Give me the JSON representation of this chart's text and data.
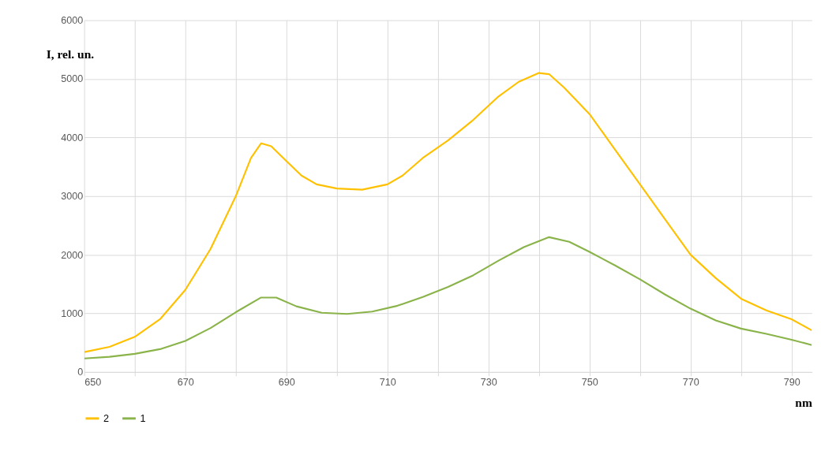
{
  "chart_data": {
    "type": "line",
    "xlabel": "nm",
    "ylabel": "I, rel. un.",
    "xlim": [
      650,
      794
    ],
    "ylim": [
      0,
      6000
    ],
    "xticks": [
      650,
      {
        "value": 660,
        "label": null
      },
      670,
      {
        "value": 680,
        "label": null
      },
      690,
      {
        "value": 700,
        "label": null
      },
      710,
      {
        "value": 720,
        "label": null
      },
      730,
      {
        "value": 740,
        "label": null
      },
      750,
      {
        "value": 760,
        "label": null
      },
      770,
      {
        "value": 780,
        "label": null
      },
      790
    ],
    "yticks": [
      0,
      1000,
      2000,
      3000,
      4000,
      5000,
      6000
    ],
    "grid": true,
    "legend": "bottom",
    "marker": "none",
    "line_style": "solid",
    "series": [
      {
        "name": "2",
        "color": "#ffc000",
        "x": [
          650,
          655,
          660,
          665,
          670,
          675,
          680,
          683,
          685,
          687,
          690,
          693,
          696,
          700,
          705,
          710,
          713,
          717,
          722,
          727,
          732,
          736,
          740,
          742,
          745,
          750,
          755,
          760,
          765,
          770,
          775,
          780,
          785,
          790,
          794
        ],
        "values": [
          340,
          430,
          600,
          900,
          1400,
          2100,
          3000,
          3650,
          3900,
          3850,
          3600,
          3350,
          3200,
          3130,
          3110,
          3200,
          3350,
          3650,
          3950,
          4300,
          4700,
          4950,
          5100,
          5080,
          4850,
          4400,
          3800,
          3200,
          2600,
          2000,
          1600,
          1250,
          1050,
          900,
          710
        ]
      },
      {
        "name": "1",
        "color": "#8ab34a",
        "x": [
          650,
          655,
          660,
          665,
          670,
          675,
          680,
          685,
          688,
          692,
          697,
          702,
          707,
          712,
          717,
          722,
          727,
          732,
          737,
          742,
          746,
          750,
          755,
          760,
          765,
          770,
          775,
          780,
          785,
          790,
          794
        ],
        "values": [
          230,
          260,
          310,
          390,
          530,
          750,
          1020,
          1270,
          1270,
          1120,
          1010,
          990,
          1030,
          1130,
          1280,
          1450,
          1650,
          1900,
          2130,
          2300,
          2220,
          2050,
          1820,
          1580,
          1320,
          1080,
          880,
          740,
          650,
          550,
          460
        ]
      }
    ]
  }
}
